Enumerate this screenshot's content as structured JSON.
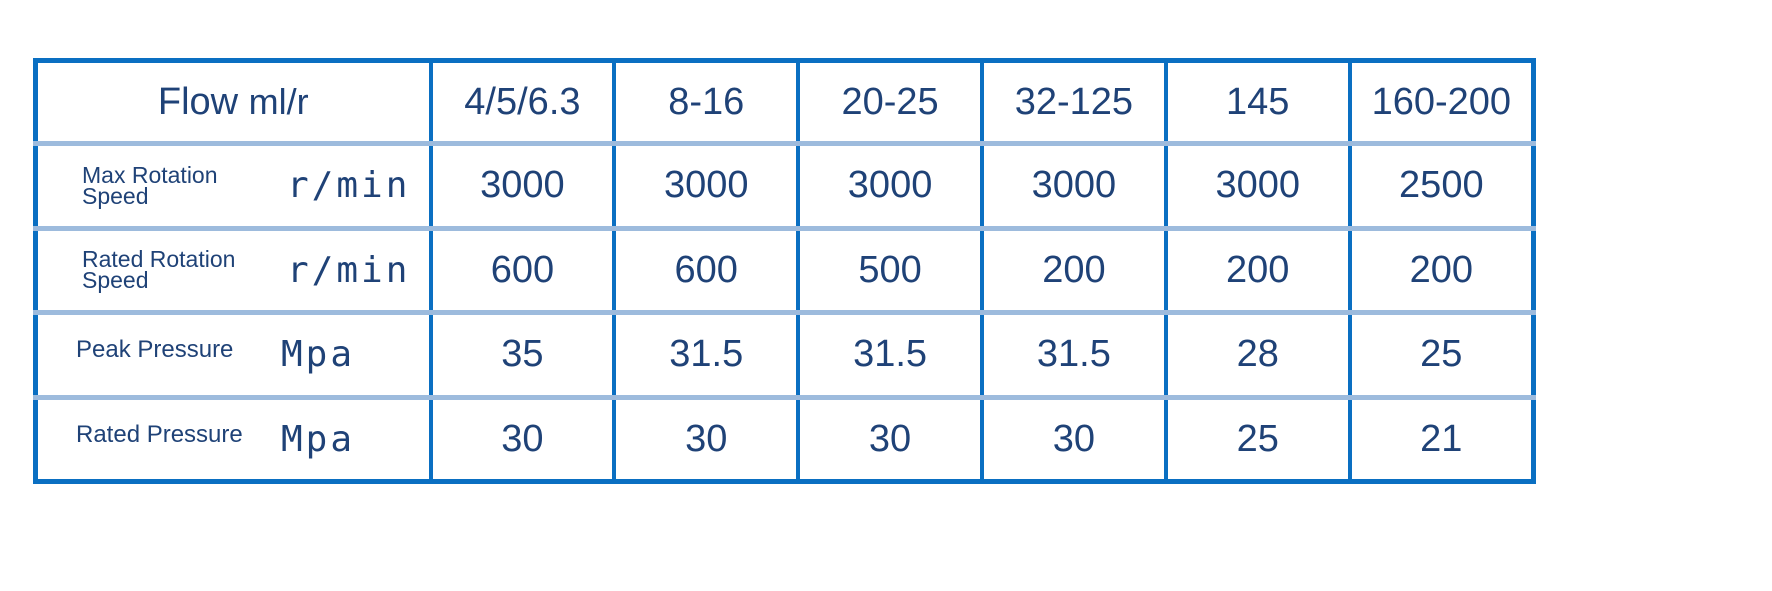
{
  "header": {
    "label": "Flow",
    "unit": "ml/r",
    "columns": [
      "4/5/6.3",
      "8-16",
      "20-25",
      "32-125",
      "145",
      "160-200"
    ]
  },
  "rows": [
    {
      "label": "Max Rotation Speed",
      "unit": "r/min",
      "values": [
        "3000",
        "3000",
        "3000",
        "3000",
        "3000",
        "2500"
      ]
    },
    {
      "label": "Rated Rotation Speed",
      "unit": "r/min",
      "values": [
        "600",
        "600",
        "500",
        "200",
        "200",
        "200"
      ]
    },
    {
      "label": "Peak Pressure",
      "unit": "Mpa",
      "values": [
        "35",
        "31.5",
        "31.5",
        "31.5",
        "28",
        "25"
      ]
    },
    {
      "label": "Rated Pressure",
      "unit": "Mpa",
      "values": [
        "30",
        "30",
        "30",
        "30",
        "25",
        "21"
      ]
    }
  ],
  "colors": {
    "border": "#0a6fc2",
    "row_divider": "#9dbbdd",
    "text": "#1f4277"
  }
}
